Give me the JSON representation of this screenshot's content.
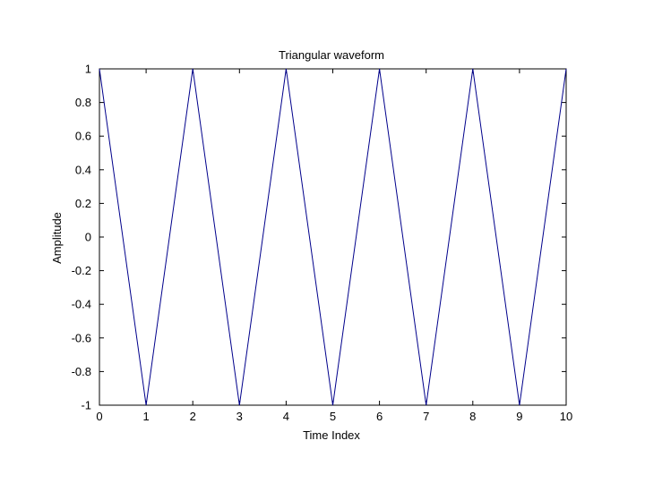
{
  "chart_data": {
    "type": "line",
    "title": "Triangular waveform",
    "xlabel": "Time Index",
    "ylabel": "Amplitude",
    "xlim": [
      0,
      10
    ],
    "ylim": [
      -1,
      1
    ],
    "xticks": [
      0,
      1,
      2,
      3,
      4,
      5,
      6,
      7,
      8,
      9,
      10
    ],
    "yticks": [
      -1,
      -0.8,
      -0.6,
      -0.4,
      -0.2,
      0,
      0.2,
      0.4,
      0.6,
      0.8,
      1
    ],
    "xtick_labels": [
      "0",
      "1",
      "2",
      "3",
      "4",
      "5",
      "6",
      "7",
      "8",
      "9",
      "10"
    ],
    "ytick_labels": [
      "-1",
      "-0.8",
      "-0.6",
      "-0.4",
      "-0.2",
      "0",
      "0.2",
      "0.4",
      "0.6",
      "0.8",
      "1"
    ],
    "grid": false,
    "series": [
      {
        "color": "#00008b",
        "x": [
          0,
          1,
          2,
          3,
          4,
          5,
          6,
          7,
          8,
          9,
          10
        ],
        "y": [
          1,
          -1,
          1,
          -1,
          1,
          -1,
          1,
          -1,
          1,
          -1,
          1
        ]
      }
    ]
  }
}
